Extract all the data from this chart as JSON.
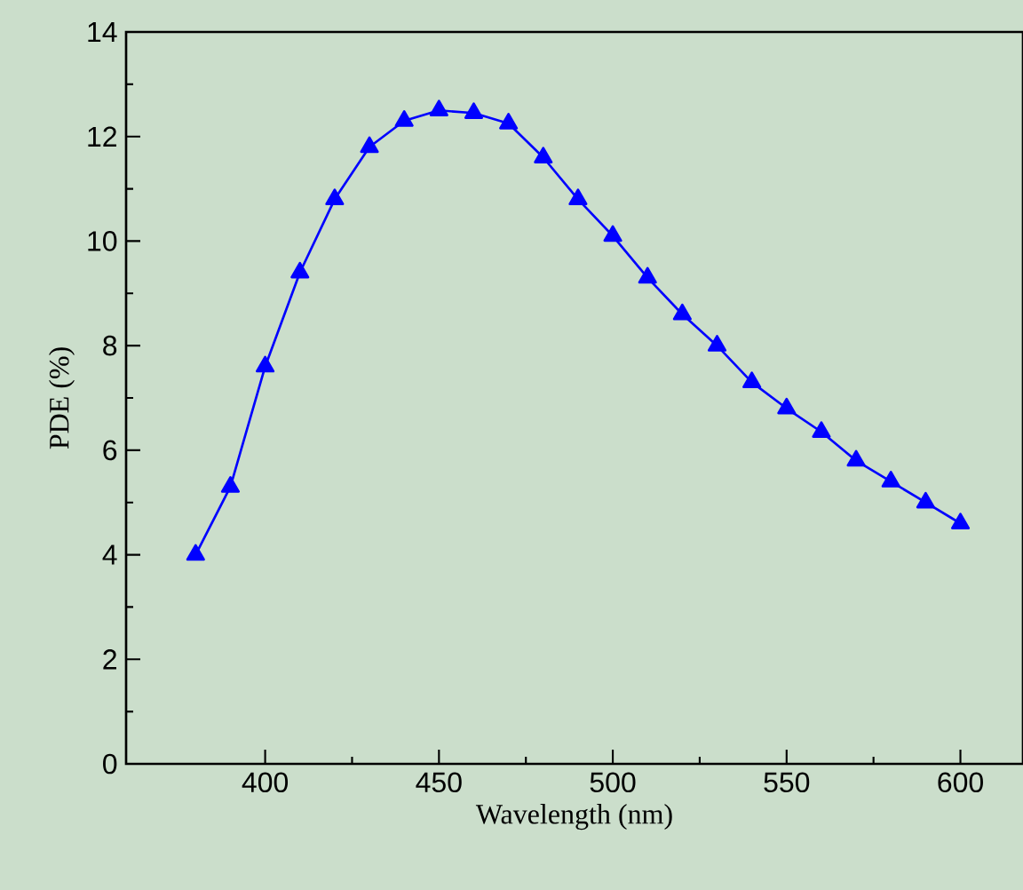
{
  "chart_data": {
    "type": "line",
    "xlabel": "Wavelength (nm)",
    "ylabel": "PDE (%)",
    "x": [
      380,
      390,
      400,
      410,
      420,
      430,
      440,
      450,
      460,
      470,
      480,
      490,
      500,
      510,
      520,
      530,
      540,
      550,
      560,
      570,
      580,
      590,
      600
    ],
    "series": [
      {
        "color": "#0000ff",
        "values": [
          4.0,
          5.3,
          7.6,
          9.4,
          10.8,
          11.8,
          12.3,
          12.5,
          12.45,
          12.25,
          11.6,
          10.8,
          10.1,
          9.3,
          8.6,
          8.0,
          7.3,
          6.8,
          6.35,
          5.8,
          5.4,
          5.0,
          4.6
        ]
      }
    ],
    "xlim": [
      360,
      618
    ],
    "ylim": [
      0,
      14
    ],
    "xticks": [
      400,
      450,
      500,
      550,
      600
    ],
    "yticks": [
      0,
      2,
      4,
      6,
      8,
      10,
      12,
      14
    ],
    "marker": "triangle",
    "line_style": "solid",
    "grid": false
  }
}
